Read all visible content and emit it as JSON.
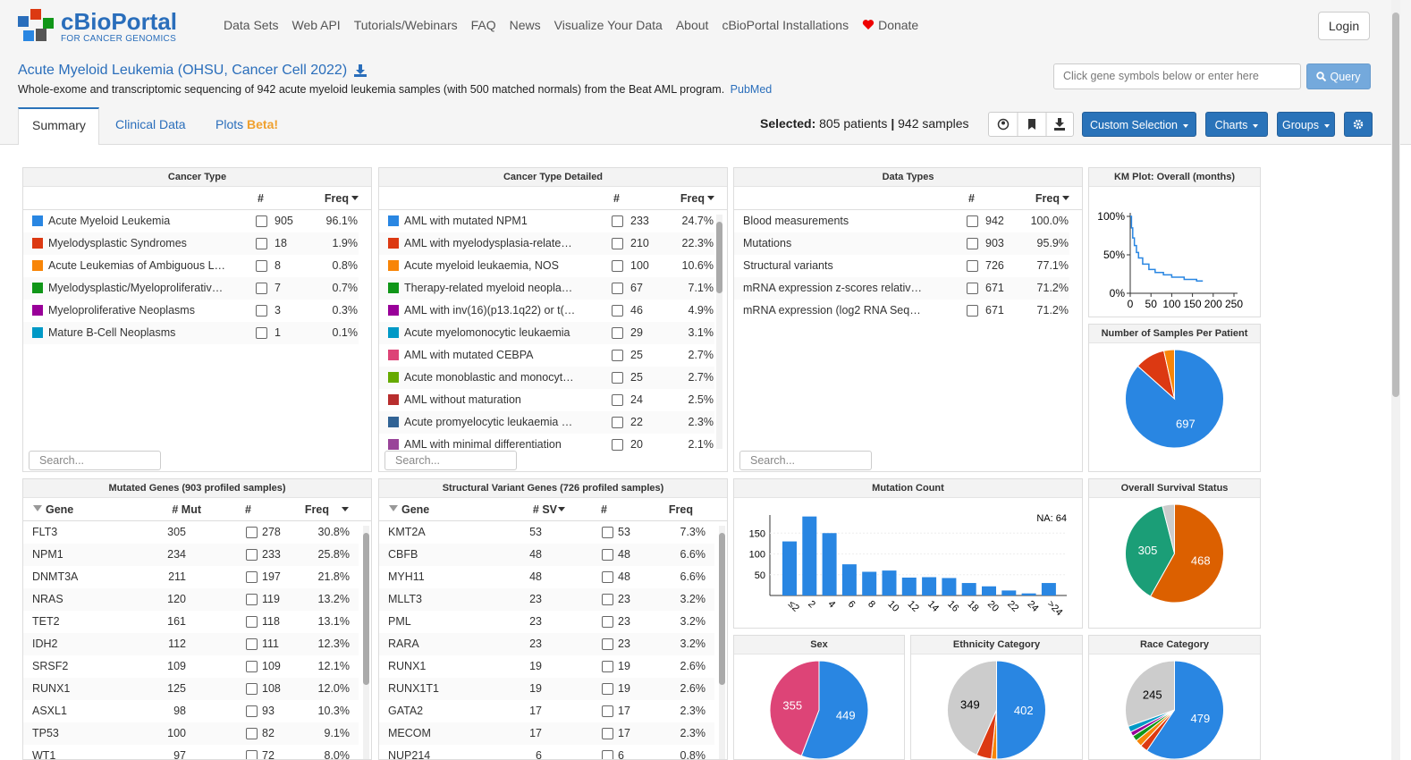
{
  "header": {
    "logo": "cBioPortal",
    "logo_sub": "FOR CANCER GENOMICS",
    "nav": [
      "Data Sets",
      "Web API",
      "Tutorials/Webinars",
      "FAQ",
      "News",
      "Visualize Your Data",
      "About",
      "cBioPortal Installations"
    ],
    "donate": "Donate",
    "login": "Login"
  },
  "study": {
    "title": "Acute Myeloid Leukemia (OHSU, Cancer Cell 2022)",
    "description": "Whole-exome and transcriptomic sequencing of 942 acute myeloid leukemia samples (with 500 matched normals) from the Beat AML program.",
    "pubmed": "PubMed",
    "gene_input": "Click gene symbols below or enter here",
    "query": "Query"
  },
  "tabs": [
    "Summary",
    "Clinical Data",
    "Plots"
  ],
  "beta": "Beta!",
  "selection": {
    "label": "Selected:",
    "patients": "805 patients",
    "separator": "|",
    "samples": "942 samples"
  },
  "buttons": [
    "Custom Selection",
    "Charts",
    "Groups"
  ],
  "search": "Search...",
  "tables": [
    {
      "title": "Cancer Type",
      "columns": [
        "#",
        "Freq"
      ],
      "rows": [
        {
          "color": "#2986e2",
          "name": "Acute Myeloid Leukemia",
          "count": 905,
          "freq": "96.1%"
        },
        {
          "color": "#dc3912",
          "name": "Myelodysplastic Syndromes",
          "count": 18,
          "freq": "1.9%"
        },
        {
          "color": "#f88508",
          "name": "Acute Leukemias of Ambiguous L…",
          "count": 8,
          "freq": "0.8%"
        },
        {
          "color": "#109618",
          "name": "Myelodysplastic/Myeloproliferativ…",
          "count": 7,
          "freq": "0.7%"
        },
        {
          "color": "#990099",
          "name": "Myeloproliferative Neoplasms",
          "count": 3,
          "freq": "0.3%"
        },
        {
          "color": "#0099c6",
          "name": "Mature B-Cell Neoplasms",
          "count": 1,
          "freq": "0.1%"
        }
      ]
    },
    {
      "title": "Cancer Type Detailed",
      "columns": [
        "#",
        "Freq"
      ],
      "rows": [
        {
          "color": "#2986e2",
          "name": "AML with mutated NPM1",
          "count": 233,
          "freq": "24.7%"
        },
        {
          "color": "#dc3912",
          "name": "AML with myelodysplasia-relate…",
          "count": 210,
          "freq": "22.3%"
        },
        {
          "color": "#f88508",
          "name": "Acute myeloid leukaemia, NOS",
          "count": 100,
          "freq": "10.6%"
        },
        {
          "color": "#109618",
          "name": "Therapy-related myeloid neopla…",
          "count": 67,
          "freq": "7.1%"
        },
        {
          "color": "#990099",
          "name": "AML with inv(16)(p13.1q22) or t(…",
          "count": 46,
          "freq": "4.9%"
        },
        {
          "color": "#0099c6",
          "name": "Acute myelomonocytic leukaemia",
          "count": 29,
          "freq": "3.1%"
        },
        {
          "color": "#dd4477",
          "name": "AML with mutated CEBPA",
          "count": 25,
          "freq": "2.7%"
        },
        {
          "color": "#66aa00",
          "name": "Acute monoblastic and monocyt…",
          "count": 25,
          "freq": "2.7%"
        },
        {
          "color": "#b82e2e",
          "name": "AML without maturation",
          "count": 24,
          "freq": "2.5%"
        },
        {
          "color": "#316395",
          "name": "Acute promyelocytic leukaemia …",
          "count": 22,
          "freq": "2.3%"
        },
        {
          "color": "#994499",
          "name": "AML with minimal differentiation",
          "count": 20,
          "freq": "2.1%"
        }
      ]
    },
    {
      "title": "Data Types",
      "columns": [
        "#",
        "Freq"
      ],
      "rows": [
        {
          "name": "Blood measurements",
          "count": 942,
          "freq": "100.0%"
        },
        {
          "name": "Mutations",
          "count": 903,
          "freq": "95.9%"
        },
        {
          "name": "Structural variants",
          "count": 726,
          "freq": "77.1%"
        },
        {
          "name": "mRNA expression z-scores relativ…",
          "count": 671,
          "freq": "71.2%"
        },
        {
          "name": "mRNA expression (log2 RNA Seq…",
          "count": 671,
          "freq": "71.2%"
        }
      ]
    }
  ],
  "gene_tables": [
    {
      "title": "Mutated Genes (903 profiled samples)",
      "columns": [
        "Gene",
        "# Mut",
        "#",
        "Freq"
      ],
      "rows": [
        [
          "FLT3",
          305,
          278,
          "30.8%"
        ],
        [
          "NPM1",
          234,
          233,
          "25.8%"
        ],
        [
          "DNMT3A",
          211,
          197,
          "21.8%"
        ],
        [
          "NRAS",
          120,
          119,
          "13.2%"
        ],
        [
          "TET2",
          161,
          118,
          "13.1%"
        ],
        [
          "IDH2",
          112,
          111,
          "12.3%"
        ],
        [
          "SRSF2",
          109,
          109,
          "12.1%"
        ],
        [
          "RUNX1",
          125,
          108,
          "12.0%"
        ],
        [
          "ASXL1",
          98,
          93,
          "10.3%"
        ],
        [
          "TP53",
          100,
          82,
          "9.1%"
        ],
        [
          "WT1",
          97,
          72,
          "8.0%"
        ]
      ]
    },
    {
      "title": "Structural Variant Genes (726 profiled samples)",
      "columns": [
        "Gene",
        "# SV",
        "#",
        "Freq"
      ],
      "rows": [
        [
          "KMT2A",
          53,
          53,
          "7.3%"
        ],
        [
          "CBFB",
          48,
          48,
          "6.6%"
        ],
        [
          "MYH11",
          48,
          48,
          "6.6%"
        ],
        [
          "MLLT3",
          23,
          23,
          "3.2%"
        ],
        [
          "PML",
          23,
          23,
          "3.2%"
        ],
        [
          "RARA",
          23,
          23,
          "3.2%"
        ],
        [
          "RUNX1",
          19,
          19,
          "2.6%"
        ],
        [
          "RUNX1T1",
          19,
          19,
          "2.6%"
        ],
        [
          "GATA2",
          17,
          17,
          "2.3%"
        ],
        [
          "MECOM",
          17,
          17,
          "2.3%"
        ],
        [
          "NUP214",
          6,
          6,
          "0.8%"
        ]
      ]
    }
  ],
  "charts": [
    {
      "type": "line",
      "title": "KM Plot: Overall (months)",
      "color": "#2986e2",
      "x": [
        0,
        3,
        6,
        10,
        15,
        20,
        30,
        45,
        60,
        80,
        100,
        130,
        160,
        175
      ],
      "values": [
        100,
        85,
        72,
        62,
        53,
        46,
        38,
        31,
        27,
        24,
        21,
        18,
        16,
        16
      ],
      "xlim": [
        0,
        250
      ],
      "ylim": [
        0,
        100
      ],
      "xticks": [
        0,
        50,
        100,
        150,
        200,
        250
      ],
      "yticks": [
        {
          "value": 0,
          "label": "0%"
        },
        {
          "value": 50,
          "label": "50%"
        },
        {
          "value": 100,
          "label": "100%"
        }
      ]
    },
    {
      "type": "pie",
      "title": "Number of Samples Per Patient",
      "values": [
        697,
        80,
        28
      ],
      "colors": [
        "#2986e2",
        "#dc3912",
        "#f88508"
      ]
    },
    {
      "type": "bar",
      "title": "Mutation Count",
      "color": "#2986e2",
      "annotation": "NA: 64",
      "categories": [
        "≤2",
        "2",
        "4",
        "6",
        "8",
        "10",
        "12",
        "14",
        "16",
        "18",
        "20",
        "22",
        "24",
        ">24"
      ],
      "values": [
        130,
        190,
        150,
        75,
        57,
        60,
        43,
        44,
        42,
        30,
        22,
        12,
        5,
        30
      ],
      "ylim": [
        0,
        200
      ],
      "yticks": [
        50,
        100,
        150
      ]
    },
    {
      "type": "pie",
      "title": "Overall Survival Status",
      "values": [
        468,
        305,
        32
      ],
      "colors": [
        "#dc6000",
        "#1b9e77",
        "#cccccc"
      ]
    },
    {
      "type": "pie",
      "title": "Sex",
      "values": [
        449,
        355
      ],
      "colors": [
        "#2986e2",
        "#dd4477"
      ]
    },
    {
      "type": "pie",
      "title": "Ethnicity Category",
      "values": [
        402,
        14,
        40,
        349
      ],
      "colors": [
        "#2986e2",
        "#f88508",
        "#dc3912",
        "#cccccc"
      ]
    },
    {
      "type": "pie",
      "title": "Race Category",
      "values": [
        479,
        20,
        18,
        15,
        12,
        16,
        245
      ],
      "colors": [
        "#2986e2",
        "#dc3912",
        "#f88508",
        "#109618",
        "#990099",
        "#0099c6",
        "#cccccc"
      ]
    }
  ]
}
